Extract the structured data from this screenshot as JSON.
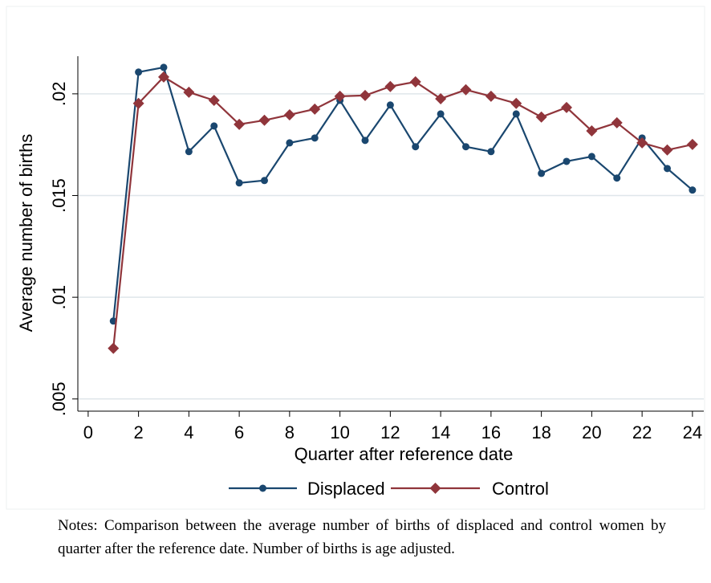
{
  "chart_data": {
    "type": "line",
    "y_label": "Average number of births",
    "x_label": "Quarter after reference date",
    "x": [
      1,
      2,
      3,
      4,
      5,
      6,
      7,
      8,
      9,
      10,
      11,
      12,
      13,
      14,
      15,
      16,
      17,
      18,
      19,
      20,
      21,
      22,
      23,
      24
    ],
    "series": [
      {
        "name": "Displaced",
        "color": "#1a476f",
        "marker": "circle",
        "values": [
          0.00883,
          0.02107,
          0.0213,
          0.01716,
          0.01842,
          0.01562,
          0.01574,
          0.01759,
          0.01783,
          0.01968,
          0.01771,
          0.01945,
          0.0174,
          0.01901,
          0.0174,
          0.01716,
          0.01901,
          0.01609,
          0.01668,
          0.01692,
          0.01586,
          0.01783,
          0.01633,
          0.01527
        ]
      },
      {
        "name": "Control",
        "color": "#90353b",
        "marker": "diamond",
        "values": [
          0.00749,
          0.01953,
          0.02083,
          0.02008,
          0.01968,
          0.0185,
          0.0187,
          0.01897,
          0.01925,
          0.01988,
          0.01992,
          0.02036,
          0.02059,
          0.01976,
          0.0202,
          0.01988,
          0.01953,
          0.01886,
          0.01933,
          0.01818,
          0.01858,
          0.01759,
          0.01724,
          0.01751
        ]
      }
    ],
    "xlim": [
      -0.41,
      24.45
    ],
    "ylim": [
      0.0044,
      0.02185
    ],
    "xticks": [
      0,
      2,
      4,
      6,
      8,
      10,
      12,
      14,
      16,
      18,
      20,
      22,
      24
    ],
    "yticks": [
      {
        "value": 0.005,
        "label": ".005"
      },
      {
        "value": 0.01,
        "label": ".01"
      },
      {
        "value": 0.015,
        "label": ".015"
      },
      {
        "value": 0.02,
        "label": ".02"
      }
    ],
    "grid": true,
    "legend": "bottom",
    "notes": "Notes: Comparison between the average number of births of displaced and control women by quarter after the reference date. Number of births is age adjusted."
  }
}
